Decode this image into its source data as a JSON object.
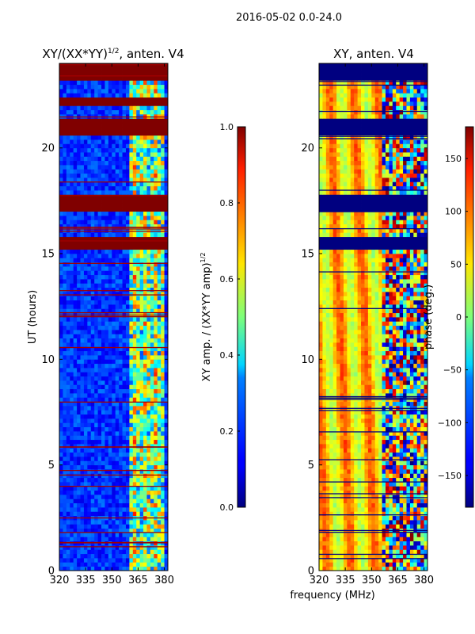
{
  "figure": {
    "suptitle": "2016-05-02 0.0-24.0",
    "shared_xlabel": "frequency (MHz)"
  },
  "chart_data": [
    {
      "type": "heatmap",
      "title": "XY/(XX*YY)^{1/2}, anten. V4",
      "title_main": "XY/(XX*YY)",
      "title_sup": "1/2",
      "title_tail": ", anten. V4",
      "xlabel": "frequency (MHz)",
      "ylabel": "UT (hours)",
      "xlim": [
        320,
        382
      ],
      "ylim": [
        0,
        24
      ],
      "x_ticks": [
        320,
        335,
        350,
        365,
        380
      ],
      "y_ticks": [
        0,
        5,
        10,
        15,
        20
      ],
      "colorbar": {
        "label": "XY amp. / (XX*YY amp)^{1/2}",
        "label_main": "XY amp. / (XX*YY amp)",
        "label_sup": "1/2",
        "range": [
          0.0,
          1.0
        ],
        "ticks": [
          "0.0",
          "0.2",
          "0.4",
          "0.6",
          "0.8",
          "1.0"
        ],
        "tick_values": [
          0.0,
          0.2,
          0.4,
          0.6,
          0.8,
          1.0
        ],
        "colormap": "jet"
      },
      "saturated_time_bands_hours": [
        [
          23.25,
          24.0
        ],
        [
          22.1,
          22.45
        ],
        [
          20.7,
          21.35
        ],
        [
          17.1,
          17.8
        ],
        [
          15.2,
          15.75
        ]
      ],
      "high_value_freq_band_mhz": [
        360,
        380
      ]
    },
    {
      "type": "heatmap",
      "title": "XY, anten. V4",
      "xlabel": "frequency (MHz)",
      "ylabel": "phase (deg.)",
      "xlim": [
        320,
        382
      ],
      "ylim": [
        0,
        24
      ],
      "x_ticks": [
        320,
        335,
        350,
        365,
        380
      ],
      "y_ticks": [
        0,
        5,
        10,
        15,
        20
      ],
      "colorbar": {
        "label": "phase (deg.)",
        "range": [
          -180,
          180
        ],
        "ticks": [
          "150",
          "100",
          "50",
          "0",
          "−50",
          "−100",
          "−150"
        ],
        "tick_values": [
          150,
          100,
          50,
          0,
          -50,
          -100,
          -150
        ],
        "colormap": "jet"
      },
      "masked_time_bands_hours": [
        [
          23.25,
          24.0
        ],
        [
          20.7,
          21.35
        ],
        [
          17.1,
          17.8
        ],
        [
          15.2,
          15.75
        ]
      ],
      "noisy_freq_band_mhz": [
        357,
        382
      ]
    }
  ]
}
